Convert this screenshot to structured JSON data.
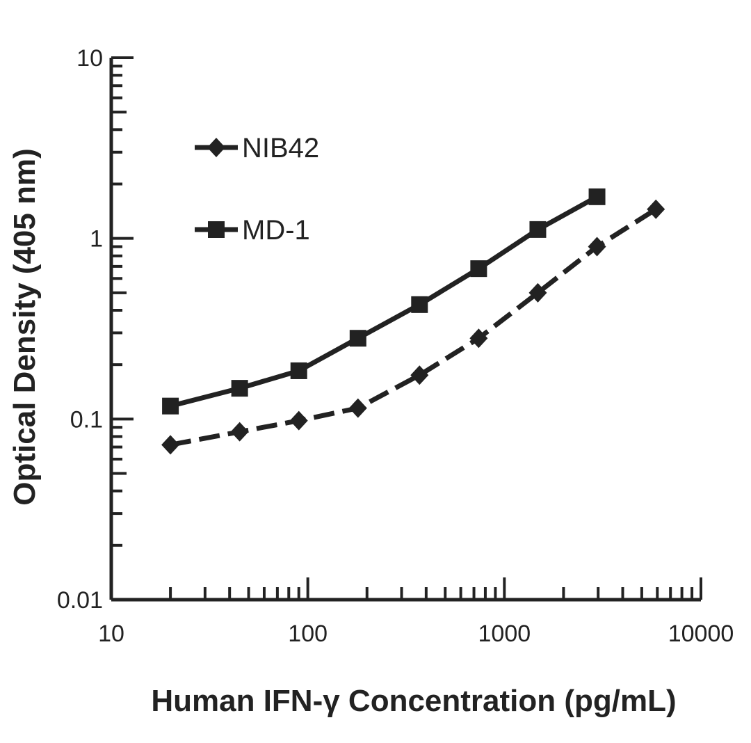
{
  "chart_data": {
    "type": "line",
    "title": "",
    "xlabel": "Human IFN-γ Concentration (pg/mL)",
    "ylabel": "Optical Density (405 nm)",
    "xscale": "log",
    "yscale": "log",
    "xlim": [
      10,
      10000
    ],
    "ylim": [
      0.01,
      10
    ],
    "x_tick_labels": [
      "10",
      "100",
      "1000",
      "10000"
    ],
    "y_tick_labels": [
      "0.01",
      "0.1",
      "1",
      "10"
    ],
    "grid": false,
    "legend_position": "top-left",
    "series": [
      {
        "name": "NIB42",
        "marker": "diamond",
        "line_style": "dashed",
        "color": "#222222",
        "x": [
          20,
          45,
          90,
          180,
          370,
          740,
          1480,
          2960,
          5900
        ],
        "y": [
          0.072,
          0.085,
          0.098,
          0.115,
          0.175,
          0.28,
          0.5,
          0.9,
          1.45
        ]
      },
      {
        "name": "MD-1",
        "marker": "square",
        "line_style": "solid",
        "color": "#222222",
        "x": [
          20,
          45,
          90,
          180,
          370,
          740,
          1480,
          2960
        ],
        "y": [
          0.118,
          0.148,
          0.185,
          0.28,
          0.43,
          0.68,
          1.12,
          1.7
        ]
      }
    ]
  }
}
